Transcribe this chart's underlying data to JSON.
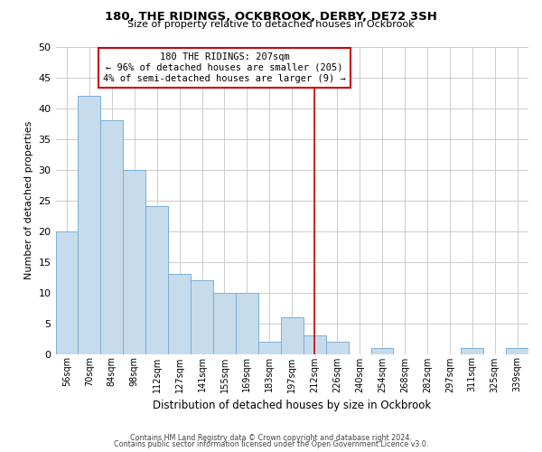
{
  "title": "180, THE RIDINGS, OCKBROOK, DERBY, DE72 3SH",
  "subtitle": "Size of property relative to detached houses in Ockbrook",
  "xlabel": "Distribution of detached houses by size in Ockbrook",
  "ylabel": "Number of detached properties",
  "bar_labels": [
    "56sqm",
    "70sqm",
    "84sqm",
    "98sqm",
    "112sqm",
    "127sqm",
    "141sqm",
    "155sqm",
    "169sqm",
    "183sqm",
    "197sqm",
    "212sqm",
    "226sqm",
    "240sqm",
    "254sqm",
    "268sqm",
    "282sqm",
    "297sqm",
    "311sqm",
    "325sqm",
    "339sqm"
  ],
  "bar_heights": [
    20,
    42,
    38,
    30,
    24,
    13,
    12,
    10,
    10,
    2,
    6,
    3,
    2,
    0,
    1,
    0,
    0,
    0,
    1,
    0,
    1
  ],
  "bar_color": "#c6dcec",
  "bar_edge_color": "#7bafd4",
  "marker_index": 11,
  "marker_color": "#cc0000",
  "annotation_title": "180 THE RIDINGS: 207sqm",
  "annotation_line1": "← 96% of detached houses are smaller (205)",
  "annotation_line2": "4% of semi-detached houses are larger (9) →",
  "ylim": [
    0,
    50
  ],
  "yticks": [
    0,
    5,
    10,
    15,
    20,
    25,
    30,
    35,
    40,
    45,
    50
  ],
  "footer1": "Contains HM Land Registry data © Crown copyright and database right 2024.",
  "footer2": "Contains public sector information licensed under the Open Government Licence v3.0.",
  "background_color": "#ffffff",
  "grid_color": "#cccccc"
}
